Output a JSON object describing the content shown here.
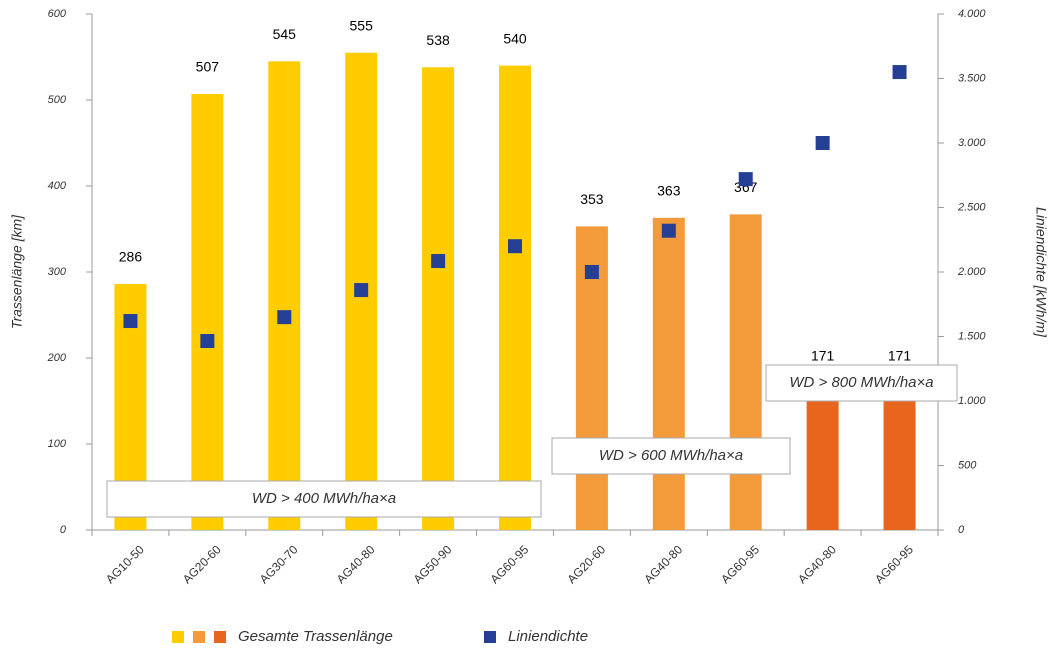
{
  "chart_data": {
    "type": "bar",
    "categories": [
      "AG10-50",
      "AG20-60",
      "AG30-70",
      "AG40-80",
      "AG50-90",
      "AG60-95",
      "AG20-60",
      "AG40-80",
      "AG60-95",
      "AG40-80",
      "AG60-95"
    ],
    "series": [
      {
        "name": "Gesamte Trassenlänge",
        "type": "bar",
        "colors": [
          "#ffcc00",
          "#ffcc00",
          "#ffcc00",
          "#ffcc00",
          "#ffcc00",
          "#ffcc00",
          "#f39a3a",
          "#f39a3a",
          "#f39a3a",
          "#e8651e",
          "#e8651e"
        ],
        "values": [
          286,
          507,
          545,
          555,
          538,
          540,
          353,
          363,
          367,
          171,
          171
        ]
      },
      {
        "name": "Liniendichte",
        "type": "scatter",
        "axis": "y2",
        "color": "#253f94",
        "values": [
          1620,
          1465,
          1650,
          1860,
          2085,
          2200,
          2000,
          2320,
          2720,
          3000,
          3550
        ]
      }
    ],
    "ylabel": "Trassenlänge [km]",
    "y2label": "Liniendichte [kWh/m]",
    "ylim": [
      0,
      600
    ],
    "yticks": [
      0,
      100,
      200,
      300,
      400,
      500,
      600
    ],
    "y2lim": [
      0,
      4000
    ],
    "y2ticks": [
      0,
      500,
      {
        "value": 1000,
        "label": "1.000"
      },
      {
        "value": 1500,
        "label": "1.500"
      },
      {
        "value": 2000,
        "label": "2.000"
      },
      {
        "value": 2500,
        "label": "2.500"
      },
      {
        "value": 3000,
        "label": "3.000"
      },
      {
        "value": 3500,
        "label": "3.500"
      },
      {
        "value": 4000,
        "label": "4.000"
      }
    ],
    "annotations": [
      "WD > 400 MWh/ha×a",
      "WD > 600 MWh/ha×a",
      "WD > 800 MWh/ha×a"
    ],
    "legend": "bottom"
  }
}
